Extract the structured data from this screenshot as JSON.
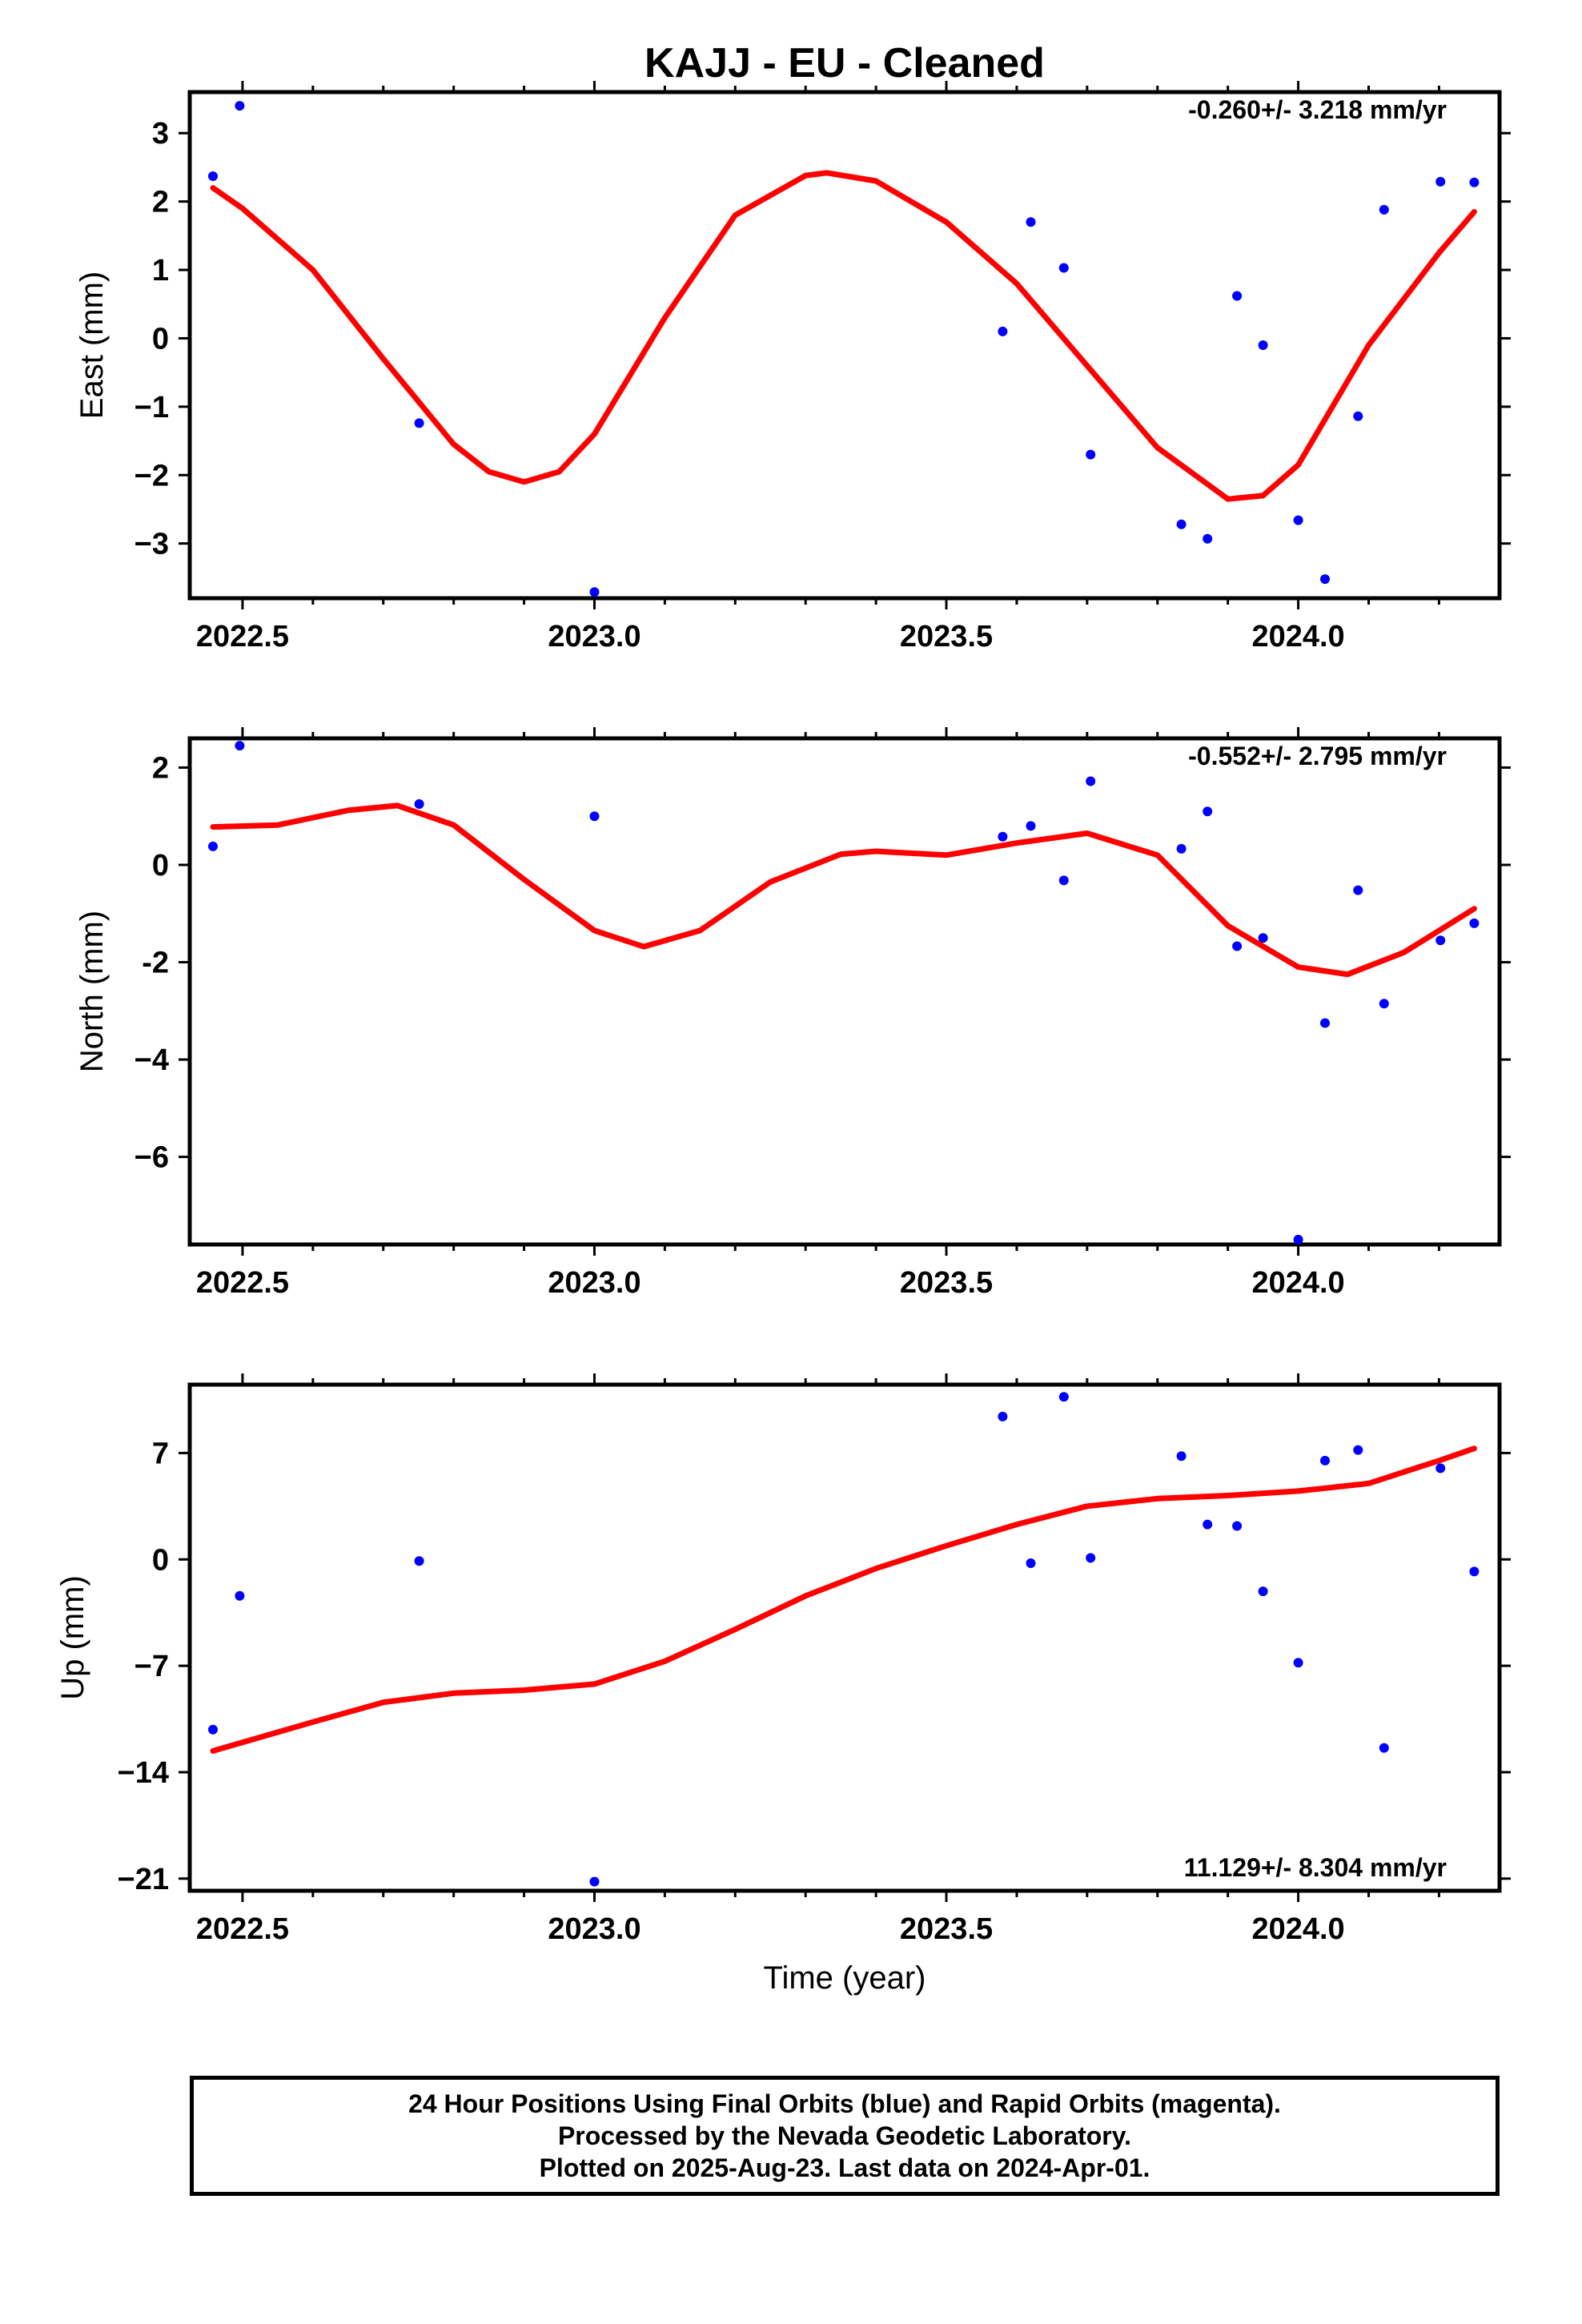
{
  "title": "KAJJ  - EU - Cleaned",
  "footer": {
    "line1": "24 Hour Positions Using Final Orbits (blue) and Rapid Orbits (magenta).",
    "line2": "Processed by the Nevada Geodetic Laboratory.",
    "line3": "Plotted on 2025-Aug-23. Last data on 2024-Apr-01."
  },
  "colors": {
    "points": "#0000ff",
    "fit": "#ff0000",
    "frame": "#000000"
  },
  "chart_data": [
    {
      "type": "scatter",
      "title": "KAJJ  - EU - Cleaned",
      "xlabel": "",
      "ylabel": "East (mm)",
      "annotation": "-0.260+/- 3.218 mm/yr",
      "xlim": [
        2022.425,
        2024.286
      ],
      "ylim": [
        -3.8,
        3.6
      ],
      "xticks": [
        2022.5,
        2023.0,
        2023.5,
        2024.0
      ],
      "xtick_labels": [
        "2022.5",
        "2023.0",
        "2023.5",
        "2024.0"
      ],
      "yticks": [
        3,
        2,
        1,
        0,
        -1,
        -2,
        -3
      ],
      "ytick_labels": [
        "3",
        "2",
        "1",
        "0",
        "−1",
        "−2",
        "−3"
      ],
      "grid": false,
      "series": [
        {
          "kind": "points",
          "x": [
            2022.458,
            2022.496,
            2022.751,
            2023.0,
            2023.58,
            2023.62,
            2023.667,
            2023.705,
            2023.834,
            2023.871,
            2023.913,
            2023.95,
            2024.0,
            2024.038,
            2024.085,
            2024.122,
            2024.202,
            2024.25
          ],
          "y": [
            2.37,
            3.4,
            -1.24,
            -3.71,
            0.1,
            1.7,
            1.03,
            -1.7,
            -2.72,
            -2.93,
            0.62,
            -0.1,
            -2.66,
            -3.52,
            -1.14,
            1.88,
            2.29,
            2.28
          ]
        },
        {
          "kind": "fit",
          "x": [
            2022.458,
            2022.5,
            2022.6,
            2022.7,
            2022.8,
            2022.85,
            2022.9,
            2022.95,
            2023.0,
            2023.1,
            2023.2,
            2023.3,
            2023.33,
            2023.4,
            2023.5,
            2023.6,
            2023.7,
            2023.8,
            2023.9,
            2023.95,
            2024.0,
            2024.1,
            2024.2,
            2024.25
          ],
          "y": [
            2.2,
            1.9,
            1.0,
            -0.3,
            -1.55,
            -1.95,
            -2.1,
            -1.95,
            -1.4,
            0.3,
            1.8,
            2.38,
            2.42,
            2.3,
            1.7,
            0.8,
            -0.4,
            -1.6,
            -2.35,
            -2.3,
            -1.85,
            -0.1,
            1.25,
            1.85
          ]
        }
      ]
    },
    {
      "type": "scatter",
      "xlabel": "",
      "ylabel": "North (mm)",
      "annotation": "-0.552+/- 2.795 mm/yr",
      "xlim": [
        2022.425,
        2024.286
      ],
      "ylim": [
        -7.8,
        2.6
      ],
      "xticks": [
        2022.5,
        2023.0,
        2023.5,
        2024.0
      ],
      "xtick_labels": [
        "2022.5",
        "2023.0",
        "2023.5",
        "2024.0"
      ],
      "yticks": [
        2,
        0,
        -2,
        -4,
        -6
      ],
      "ytick_labels": [
        "2",
        "0",
        "-2",
        "−4",
        "−6"
      ],
      "grid": false,
      "series": [
        {
          "kind": "points",
          "x": [
            2022.458,
            2022.496,
            2022.751,
            2023.0,
            2023.58,
            2023.62,
            2023.667,
            2023.705,
            2023.834,
            2023.871,
            2023.913,
            2023.95,
            2024.0,
            2024.038,
            2024.085,
            2024.122,
            2024.202,
            2024.25
          ],
          "y": [
            0.38,
            2.45,
            1.25,
            1.0,
            0.58,
            0.8,
            -0.32,
            1.72,
            0.33,
            1.1,
            -1.67,
            -1.5,
            -7.7,
            -3.25,
            -0.52,
            -2.85,
            -1.55,
            -1.2
          ]
        },
        {
          "kind": "fit",
          "x": [
            2022.458,
            2022.55,
            2022.65,
            2022.72,
            2022.8,
            2022.9,
            2023.0,
            2023.07,
            2023.15,
            2023.25,
            2023.35,
            2023.4,
            2023.5,
            2023.6,
            2023.7,
            2023.8,
            2023.9,
            2024.0,
            2024.07,
            2024.15,
            2024.25
          ],
          "y": [
            0.78,
            0.82,
            1.12,
            1.22,
            0.82,
            -0.3,
            -1.35,
            -1.68,
            -1.35,
            -0.35,
            0.22,
            0.28,
            0.2,
            0.45,
            0.65,
            0.2,
            -1.25,
            -2.1,
            -2.25,
            -1.8,
            -0.9
          ]
        }
      ]
    },
    {
      "type": "scatter",
      "xlabel": "Time (year)",
      "ylabel": "Up (mm)",
      "annotation": "11.129+/- 8.304 mm/yr",
      "xlim": [
        2022.425,
        2024.286
      ],
      "ylim": [
        -21.8,
        11.5
      ],
      "xticks": [
        2022.5,
        2023.0,
        2023.5,
        2024.0
      ],
      "xtick_labels": [
        "2022.5",
        "2023.0",
        "2023.5",
        "2024.0"
      ],
      "yticks": [
        7,
        0,
        -7,
        -14,
        -21
      ],
      "ytick_labels": [
        "7",
        "0",
        "−7",
        "−14",
        "−21"
      ],
      "grid": false,
      "series": [
        {
          "kind": "points",
          "x": [
            2022.458,
            2022.496,
            2022.751,
            2023.0,
            2023.58,
            2023.62,
            2023.667,
            2023.705,
            2023.834,
            2023.871,
            2023.913,
            2023.95,
            2024.0,
            2024.038,
            2024.085,
            2024.122,
            2024.202,
            2024.25
          ],
          "y": [
            -11.2,
            -2.4,
            -0.1,
            -21.2,
            9.4,
            -0.25,
            10.7,
            0.1,
            6.8,
            2.3,
            2.2,
            -2.1,
            -6.8,
            6.5,
            7.2,
            -12.4,
            6.0,
            -0.8
          ]
        },
        {
          "kind": "fit",
          "x": [
            2022.458,
            2022.6,
            2022.7,
            2022.8,
            2022.9,
            2023.0,
            2023.1,
            2023.2,
            2023.3,
            2023.4,
            2023.5,
            2023.6,
            2023.7,
            2023.8,
            2023.9,
            2024.0,
            2024.1,
            2024.2,
            2024.25
          ],
          "y": [
            -12.6,
            -10.7,
            -9.4,
            -8.8,
            -8.6,
            -8.2,
            -6.7,
            -4.6,
            -2.4,
            -0.6,
            0.9,
            2.3,
            3.5,
            4.0,
            4.2,
            4.5,
            5.0,
            6.5,
            7.3
          ]
        }
      ]
    }
  ]
}
